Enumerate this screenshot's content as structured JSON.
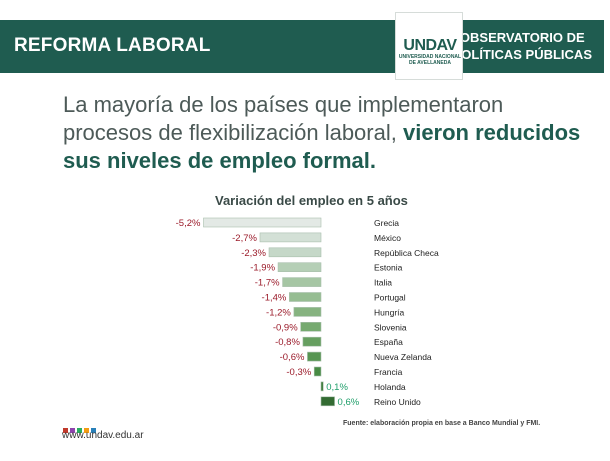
{
  "header": {
    "left_title": "REFORMA LABORAL",
    "right_line1": "OBSERVATORIO DE",
    "right_line2": "POLÍTICAS PÚBLICAS",
    "logo_mark": "UNDAV",
    "logo_sub": "UNIVERSIDAD NACIONAL DE AVELLANEDA"
  },
  "headline": {
    "part1": "La mayoría de los países que implementaron procesos de flexibilización laboral, ",
    "part2": "vieron reducidos sus niveles de empleo formal",
    "part3": "."
  },
  "footer": {
    "url": "www.undav.edu.ar",
    "source": "Fuente: elaboración propia en base a Banco Mundial y FMI."
  },
  "colors": {
    "brand": "#1f5c50",
    "negative_label": "#9b1b2a",
    "positive_label": "#1f9e6a",
    "dot_colors": [
      "#c0392b",
      "#8e44ad",
      "#27ae60",
      "#f39c12",
      "#2980b9"
    ]
  },
  "chart_data": {
    "type": "bar",
    "orientation": "horizontal",
    "title": "Variación del empleo en 5 años",
    "categories": [
      "Grecia",
      "México",
      "República Checa",
      "Estonia",
      "Italia",
      "Portugal",
      "Hungría",
      "Slovenia",
      "España",
      "Nueva Zelanda",
      "Francia",
      "Holanda",
      "Reino Unido"
    ],
    "values": [
      -5.2,
      -2.7,
      -2.3,
      -1.9,
      -1.7,
      -1.4,
      -1.2,
      -0.9,
      -0.8,
      -0.6,
      -0.3,
      0.1,
      0.6
    ],
    "labels": [
      "-5,2%",
      "-2,7%",
      "-2,3%",
      "-1,9%",
      "-1,7%",
      "-1,4%",
      "-1,2%",
      "-0,9%",
      "-0,8%",
      "-0,6%",
      "-0,3%",
      "0,1%",
      "0,6%"
    ],
    "bar_colors": [
      "#e3e9e5",
      "#d3e0d6",
      "#c5d8c8",
      "#b5cfb6",
      "#a6c6a4",
      "#96bd92",
      "#86b380",
      "#76aa70",
      "#669f60",
      "#579552",
      "#488b44",
      "#3f7d3c",
      "#336b32"
    ],
    "xlim": [
      -5.2,
      0.6
    ],
    "grid": false,
    "legend": "none"
  }
}
